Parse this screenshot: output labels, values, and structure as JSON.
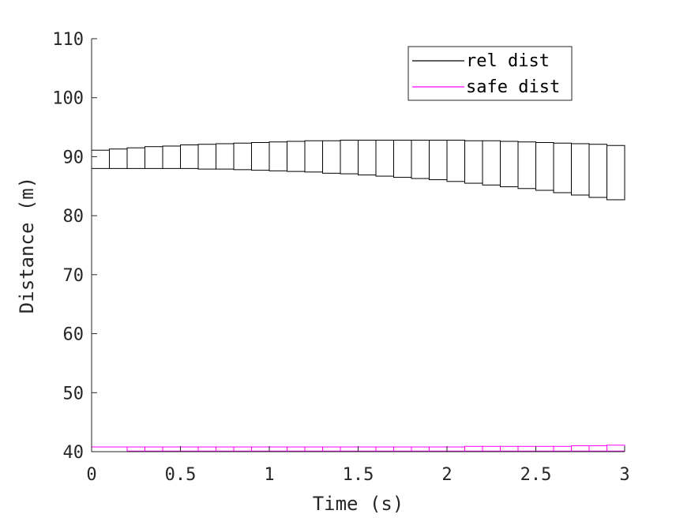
{
  "chart_data": {
    "type": "line",
    "title": "",
    "xlabel": "Time (s)",
    "ylabel": "Distance (m)",
    "xlim": [
      0,
      3
    ],
    "ylim": [
      40,
      110
    ],
    "xticks": [
      0,
      0.5,
      1,
      1.5,
      2,
      2.5,
      3
    ],
    "xtick_labels": [
      "0",
      "0.5",
      "1",
      "1.5",
      "2",
      "2.5",
      "3"
    ],
    "yticks": [
      40,
      50,
      60,
      70,
      80,
      90,
      100,
      110
    ],
    "ytick_labels": [
      "40",
      "50",
      "60",
      "70",
      "80",
      "90",
      "100",
      "110"
    ],
    "grid": false,
    "legend_position": "top-right",
    "series": [
      {
        "name": "rel dist",
        "color": "#000000",
        "style": "interval-boxes",
        "x_start": [
          0,
          0.1,
          0.2,
          0.3,
          0.4,
          0.5,
          0.6,
          0.7,
          0.8,
          0.9,
          1.0,
          1.1,
          1.2,
          1.3,
          1.4,
          1.5,
          1.6,
          1.7,
          1.8,
          1.9,
          2.0,
          2.1,
          2.2,
          2.3,
          2.4,
          2.5,
          2.6,
          2.7,
          2.8,
          2.9
        ],
        "x_end": [
          0.1,
          0.2,
          0.3,
          0.4,
          0.5,
          0.6,
          0.7,
          0.8,
          0.9,
          1.0,
          1.1,
          1.2,
          1.3,
          1.4,
          1.5,
          1.6,
          1.7,
          1.8,
          1.9,
          2.0,
          2.1,
          2.2,
          2.3,
          2.4,
          2.5,
          2.6,
          2.7,
          2.8,
          2.9,
          3.0
        ],
        "lower": [
          88.0,
          88.0,
          88.0,
          88.0,
          88.0,
          88.0,
          87.9,
          87.9,
          87.8,
          87.7,
          87.6,
          87.5,
          87.4,
          87.2,
          87.1,
          86.9,
          86.7,
          86.5,
          86.3,
          86.1,
          85.8,
          85.5,
          85.2,
          84.9,
          84.6,
          84.3,
          83.9,
          83.5,
          83.1,
          82.7
        ],
        "upper": [
          91.1,
          91.3,
          91.5,
          91.7,
          91.8,
          92.0,
          92.1,
          92.2,
          92.3,
          92.4,
          92.5,
          92.6,
          92.7,
          92.7,
          92.8,
          92.8,
          92.8,
          92.8,
          92.8,
          92.8,
          92.8,
          92.7,
          92.7,
          92.6,
          92.5,
          92.4,
          92.3,
          92.2,
          92.1,
          91.9
        ]
      },
      {
        "name": "safe dist",
        "color": "#ff00ff",
        "style": "interval-boxes",
        "x_start": [
          0,
          0.2,
          0.3,
          0.4,
          0.5,
          0.6,
          0.7,
          0.8,
          0.9,
          1.0,
          1.1,
          1.2,
          1.3,
          1.4,
          1.5,
          1.6,
          1.7,
          1.8,
          1.9,
          2.0,
          2.1,
          2.2,
          2.3,
          2.4,
          2.5,
          2.6,
          2.7,
          2.8,
          2.9
        ],
        "x_end": [
          0.2,
          0.3,
          0.4,
          0.5,
          0.6,
          0.7,
          0.8,
          0.9,
          1.0,
          1.1,
          1.2,
          1.3,
          1.4,
          1.5,
          1.6,
          1.7,
          1.8,
          1.9,
          2.0,
          2.1,
          2.2,
          2.3,
          2.4,
          2.5,
          2.6,
          2.7,
          2.8,
          2.9,
          3.0
        ],
        "lower": [
          40.0,
          40.1,
          40.1,
          40.1,
          40.1,
          40.1,
          40.1,
          40.1,
          40.1,
          40.1,
          40.1,
          40.1,
          40.1,
          40.1,
          40.1,
          40.1,
          40.1,
          40.1,
          40.1,
          40.1,
          40.1,
          40.1,
          40.1,
          40.1,
          40.1,
          40.1,
          40.1,
          40.1,
          40.1
        ],
        "upper": [
          40.8,
          40.8,
          40.8,
          40.8,
          40.8,
          40.8,
          40.8,
          40.8,
          40.8,
          40.8,
          40.8,
          40.8,
          40.8,
          40.8,
          40.8,
          40.8,
          40.8,
          40.8,
          40.8,
          40.8,
          40.9,
          40.9,
          40.9,
          40.9,
          40.9,
          40.9,
          41.0,
          41.0,
          41.1
        ]
      }
    ]
  },
  "legend": {
    "items": [
      {
        "label": "rel dist",
        "color": "#000000"
      },
      {
        "label": "safe dist",
        "color": "#ff00ff"
      }
    ]
  }
}
